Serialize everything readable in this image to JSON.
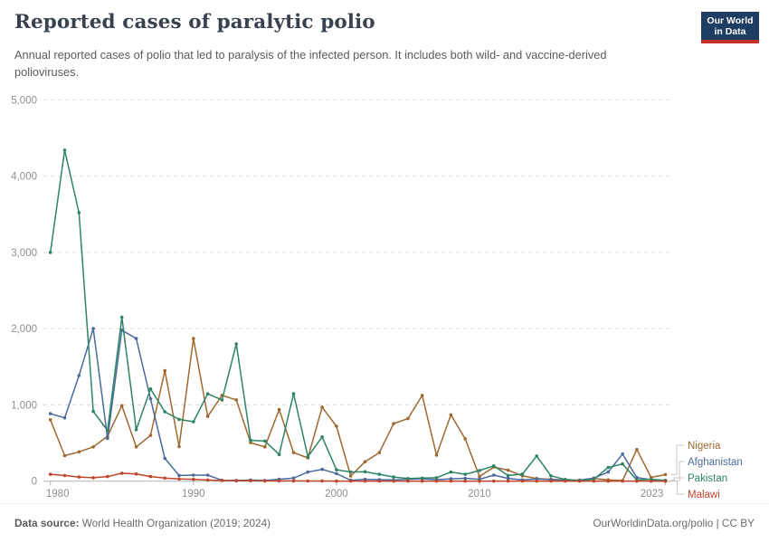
{
  "header": {
    "title": "Reported cases of paralytic polio",
    "subtitle": "Annual reported cases of polio that led to paralysis of the infected person. It includes both wild- and vaccine-derived polioviruses.",
    "logo": {
      "line1": "Our World",
      "line2": "in Data",
      "bg_color": "#1d3d63",
      "bar_color": "#c5312b"
    }
  },
  "footer": {
    "source_label": "Data source:",
    "source_text": " World Health Organization (2019; 2024)",
    "link_text": "OurWorldinData.org/polio",
    "license_text": " | CC BY"
  },
  "chart_data": {
    "type": "line",
    "title": "Reported cases of paralytic polio",
    "xlabel": "",
    "ylabel": "",
    "ylim": [
      0,
      5000
    ],
    "yticks": [
      0,
      1000,
      2000,
      3000,
      4000,
      5000
    ],
    "ytick_labels": [
      "0",
      "1,000",
      "2,000",
      "3,000",
      "4,000",
      "5,000"
    ],
    "xticks": [
      1980,
      1990,
      2000,
      2010,
      2023
    ],
    "grid": "horizontal-dashed",
    "legend_position": "right",
    "x": [
      1980,
      1981,
      1982,
      1983,
      1984,
      1985,
      1986,
      1987,
      1988,
      1989,
      1990,
      1991,
      1992,
      1993,
      1994,
      1995,
      1996,
      1997,
      1998,
      1999,
      2000,
      2001,
      2002,
      2003,
      2004,
      2005,
      2006,
      2007,
      2008,
      2009,
      2010,
      2011,
      2012,
      2013,
      2014,
      2015,
      2016,
      2017,
      2018,
      2019,
      2020,
      2021,
      2022,
      2023
    ],
    "series": [
      {
        "name": "Nigeria",
        "color": "#9e6830",
        "values": [
          805,
          335,
          385,
          450,
          590,
          990,
          450,
          600,
          1450,
          455,
          1870,
          850,
          1125,
          1065,
          505,
          450,
          940,
          375,
          305,
          970,
          720,
          68,
          255,
          375,
          755,
          820,
          1125,
          340,
          870,
          555,
          60,
          185,
          145,
          70,
          36,
          25,
          15,
          8,
          34,
          18,
          8,
          415,
          50,
          87
        ]
      },
      {
        "name": "Afghanistan",
        "color": "#4c6a9c",
        "values": [
          885,
          830,
          1385,
          2000,
          560,
          1980,
          1870,
          1080,
          300,
          75,
          80,
          80,
          12,
          10,
          15,
          10,
          25,
          40,
          120,
          155,
          100,
          12,
          25,
          20,
          15,
          25,
          32,
          20,
          31,
          38,
          25,
          80,
          37,
          17,
          28,
          20,
          13,
          14,
          40,
          120,
          356,
          47,
          20,
          5
        ]
      },
      {
        "name": "Pakistan",
        "color": "#2c8465",
        "values": [
          3000,
          4340,
          3520,
          915,
          665,
          2150,
          675,
          1210,
          910,
          810,
          780,
          1145,
          1065,
          1800,
          535,
          527,
          350,
          1147,
          320,
          580,
          150,
          120,
          125,
          90,
          55,
          35,
          40,
          45,
          120,
          90,
          140,
          200,
          75,
          93,
          330,
          70,
          22,
          8,
          25,
          180,
          225,
          15,
          25,
          12
        ]
      },
      {
        "name": "Malawi",
        "color": "#c0442c",
        "values": [
          90,
          75,
          55,
          45,
          60,
          105,
          95,
          60,
          40,
          28,
          25,
          15,
          8,
          5,
          5,
          4,
          3,
          3,
          2,
          2,
          1,
          1,
          1,
          1,
          1,
          1,
          1,
          1,
          1,
          1,
          1,
          1,
          1,
          1,
          1,
          1,
          1,
          1,
          1,
          1,
          1,
          1,
          1,
          0
        ]
      }
    ]
  }
}
